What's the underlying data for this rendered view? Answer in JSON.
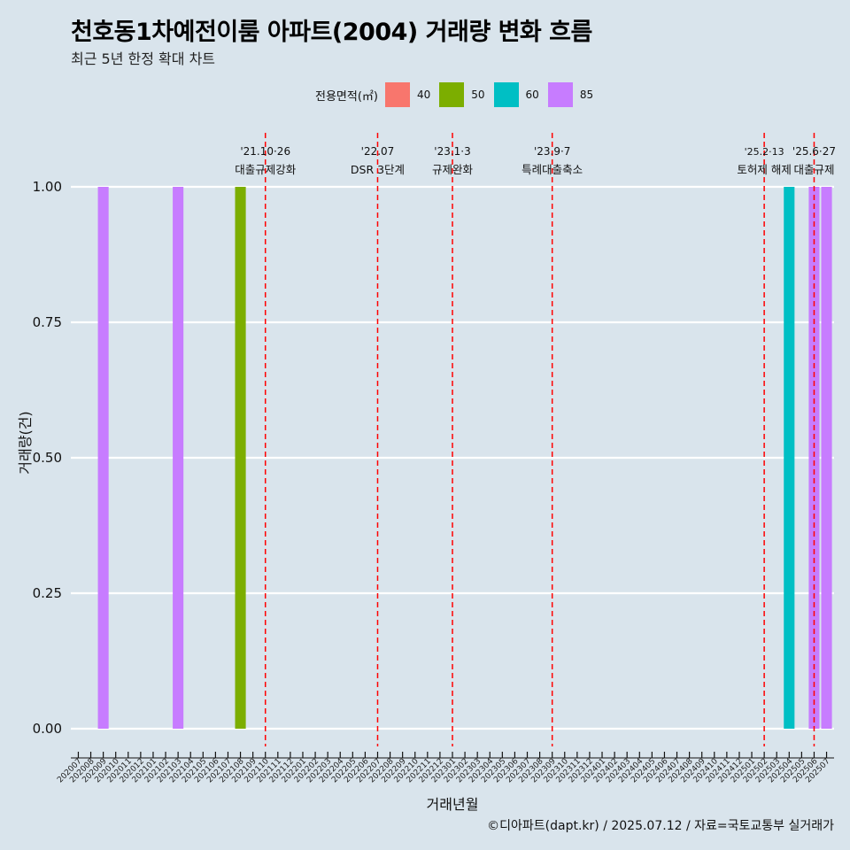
{
  "title": "천호동1차예전이룸 아파트(2004) 거래량 변화 흐름",
  "subtitle": "최근 5년 한정 확대 차트",
  "caption": "©디아파트(dapt.kr) / 2025.07.12 / 자료=국토교통부 실거래가",
  "legend": {
    "title": "전용면적(㎡)",
    "items": [
      {
        "label": "40",
        "color": "#f8766d"
      },
      {
        "label": "50",
        "color": "#7cae00"
      },
      {
        "label": "60",
        "color": "#00bfc4"
      },
      {
        "label": "85",
        "color": "#c77cff"
      }
    ]
  },
  "chart_data": {
    "type": "bar",
    "xlabel": "거래년월",
    "ylabel": "거래량(건)",
    "ylim": [
      0,
      1
    ],
    "yticks": [
      "0.00",
      "0.25",
      "0.50",
      "0.75",
      "1.00"
    ],
    "ytick_values": [
      0,
      0.25,
      0.5,
      0.75,
      1
    ],
    "grid": true,
    "categories": [
      "202007",
      "202008",
      "202009",
      "202010",
      "202011",
      "202012",
      "202101",
      "202102",
      "202103",
      "202104",
      "202105",
      "202106",
      "202107",
      "202108",
      "202109",
      "202110",
      "202111",
      "202112",
      "202201",
      "202202",
      "202203",
      "202204",
      "202205",
      "202206",
      "202207",
      "202208",
      "202209",
      "202210",
      "202211",
      "202212",
      "202301",
      "202302",
      "202303",
      "202304",
      "202305",
      "202306",
      "202307",
      "202308",
      "202309",
      "202310",
      "202311",
      "202312",
      "202401",
      "202402",
      "202403",
      "202404",
      "202405",
      "202406",
      "202407",
      "202408",
      "202409",
      "202410",
      "202411",
      "202412",
      "202501",
      "202502",
      "202503",
      "202504",
      "202505",
      "202506",
      "202507"
    ],
    "bars": [
      {
        "month": "202009",
        "area": "85",
        "value": 1
      },
      {
        "month": "202103",
        "area": "85",
        "value": 1
      },
      {
        "month": "202108",
        "area": "50",
        "value": 1
      },
      {
        "month": "202504",
        "area": "60",
        "value": 1
      },
      {
        "month": "202506",
        "area": "85",
        "value": 1
      },
      {
        "month": "202507",
        "area": "85",
        "value": 1
      }
    ],
    "events": [
      {
        "month": "202110",
        "date": "'21.10·26",
        "label": "대출규제강화"
      },
      {
        "month": "202207",
        "date": "'22.07",
        "label": "DSR 3단계"
      },
      {
        "month": "202301",
        "date": "'23.1·3",
        "label": "규제완화"
      },
      {
        "month": "202309",
        "date": "'23.9·7",
        "label": "특례대출축소"
      },
      {
        "month": "202502",
        "date": "'25.2·13",
        "label": "토허제 해제"
      },
      {
        "month": "202506",
        "date": "'25.6·27",
        "label": "대출규제"
      }
    ]
  }
}
